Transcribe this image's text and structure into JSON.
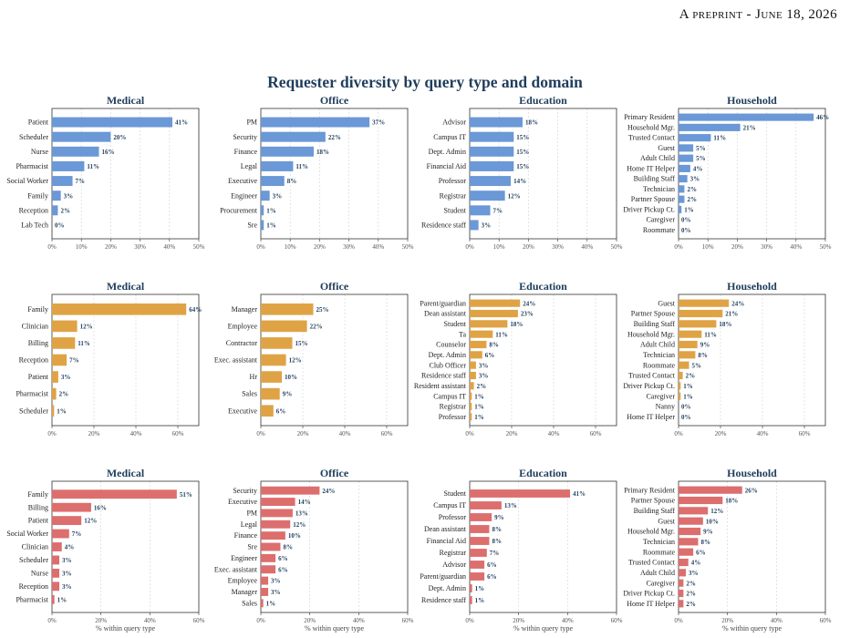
{
  "header": "A preprint - June 18, 2026",
  "main_title": "Requester diversity by query type and domain",
  "colors": {
    "row1": "#6b98d6",
    "row2": "#dfa345",
    "row3": "#dd6e6e",
    "value_label": "#1f3d5c",
    "title": "#1f3d5c"
  },
  "chart_data": [
    {
      "type": "bar",
      "orientation": "horizontal",
      "title": "Medical",
      "categories": [
        "Patient",
        "Scheduler",
        "Nurse",
        "Pharmacist",
        "Social Worker",
        "Family",
        "Reception",
        "Lab Tech"
      ],
      "values": [
        41,
        20,
        16,
        11,
        7,
        3,
        2,
        0
      ],
      "value_labels": [
        "41%",
        "20%",
        "16%",
        "11%",
        "7%",
        "3%",
        "2%",
        "0%"
      ],
      "xlim": [
        0,
        50
      ],
      "xticks": [
        "0%",
        "10%",
        "20%",
        "30%",
        "40%",
        "50%"
      ],
      "xlabel": "",
      "grid": true
    },
    {
      "type": "bar",
      "orientation": "horizontal",
      "title": "Office",
      "categories": [
        "PM",
        "Security",
        "Finance",
        "Legal",
        "Executive",
        "Engineer",
        "Procurement",
        "Sre"
      ],
      "values": [
        37,
        22,
        18,
        11,
        8,
        3,
        1,
        1
      ],
      "value_labels": [
        "37%",
        "22%",
        "18%",
        "11%",
        "8%",
        "3%",
        "1%",
        "1%"
      ],
      "xlim": [
        0,
        50
      ],
      "xticks": [
        "0%",
        "10%",
        "20%",
        "30%",
        "40%",
        "50%"
      ],
      "xlabel": "",
      "grid": true
    },
    {
      "type": "bar",
      "orientation": "horizontal",
      "title": "Education",
      "categories": [
        "Advisor",
        "Campus IT",
        "Dept. Admin",
        "Financial Aid",
        "Professor",
        "Registrar",
        "Student",
        "Residence staff"
      ],
      "values": [
        18,
        15,
        15,
        15,
        14,
        12,
        7,
        3
      ],
      "value_labels": [
        "18%",
        "15%",
        "15%",
        "15%",
        "14%",
        "12%",
        "7%",
        "3%"
      ],
      "xlim": [
        0,
        50
      ],
      "xticks": [
        "0%",
        "10%",
        "20%",
        "30%",
        "40%",
        "50%"
      ],
      "xlabel": "",
      "grid": true
    },
    {
      "type": "bar",
      "orientation": "horizontal",
      "title": "Household",
      "categories": [
        "Primary Resident",
        "Household Mgr.",
        "Trusted Contact",
        "Guest",
        "Adult Child",
        "Home IT Helper",
        "Building Staff",
        "Technician",
        "Partner Spouse",
        "Driver Pickup Ct.",
        "Caregiver",
        "Roommate"
      ],
      "values": [
        46,
        21,
        11,
        5,
        5,
        4,
        3,
        2,
        2,
        1,
        0,
        0
      ],
      "value_labels": [
        "46%",
        "21%",
        "11%",
        "5%",
        "5%",
        "4%",
        "3%",
        "2%",
        "2%",
        "1%",
        "0%",
        "0%"
      ],
      "xlim": [
        0,
        50
      ],
      "xticks": [
        "0%",
        "10%",
        "20%",
        "30%",
        "40%",
        "50%"
      ],
      "xlabel": "",
      "grid": true
    },
    {
      "type": "bar",
      "orientation": "horizontal",
      "title": "Medical",
      "categories": [
        "Family",
        "Clinician",
        "Billing",
        "Reception",
        "Patient",
        "Pharmacist",
        "Scheduler"
      ],
      "values": [
        64,
        12,
        11,
        7,
        3,
        2,
        1
      ],
      "value_labels": [
        "64%",
        "12%",
        "11%",
        "7%",
        "3%",
        "2%",
        "1%"
      ],
      "xlim": [
        0,
        70
      ],
      "xticks": [
        "0%",
        "20%",
        "40%",
        "60%"
      ],
      "xlabel": "",
      "grid": true
    },
    {
      "type": "bar",
      "orientation": "horizontal",
      "title": "Office",
      "categories": [
        "Manager",
        "Employee",
        "Contractor",
        "Exec. assistant",
        "Hr",
        "Sales",
        "Executive"
      ],
      "values": [
        25,
        22,
        15,
        12,
        10,
        9,
        6
      ],
      "value_labels": [
        "25%",
        "22%",
        "15%",
        "12%",
        "10%",
        "9%",
        "6%"
      ],
      "xlim": [
        0,
        70
      ],
      "xticks": [
        "0%",
        "20%",
        "40%",
        "60%"
      ],
      "xlabel": "",
      "grid": true
    },
    {
      "type": "bar",
      "orientation": "horizontal",
      "title": "Education",
      "categories": [
        "Parent/guardian",
        "Dean assistant",
        "Student",
        "Ta",
        "Counselor",
        "Dept. Admin",
        "Club Officer",
        "Residence staff",
        "Resident assistant",
        "Campus IT",
        "Registrar",
        "Professor"
      ],
      "values": [
        24,
        23,
        18,
        11,
        8,
        6,
        3,
        3,
        2,
        1,
        1,
        1
      ],
      "value_labels": [
        "24%",
        "23%",
        "18%",
        "11%",
        "8%",
        "6%",
        "3%",
        "3%",
        "2%",
        "1%",
        "1%",
        "1%"
      ],
      "xlim": [
        0,
        70
      ],
      "xticks": [
        "0%",
        "20%",
        "40%",
        "60%"
      ],
      "xlabel": "",
      "grid": true
    },
    {
      "type": "bar",
      "orientation": "horizontal",
      "title": "Household",
      "categories": [
        "Guest",
        "Partner Spouse",
        "Building Staff",
        "Household Mgr.",
        "Adult Child",
        "Technician",
        "Roommate",
        "Trusted Contact",
        "Driver Pickup Ct.",
        "Caregiver",
        "Nanny",
        "Home IT Helper"
      ],
      "values": [
        24,
        21,
        18,
        11,
        9,
        8,
        5,
        2,
        1,
        1,
        0,
        0
      ],
      "value_labels": [
        "24%",
        "21%",
        "18%",
        "11%",
        "9%",
        "8%",
        "5%",
        "2%",
        "1%",
        "1%",
        "0%",
        "0%"
      ],
      "xlim": [
        0,
        70
      ],
      "xticks": [
        "0%",
        "20%",
        "40%",
        "60%"
      ],
      "xlabel": "",
      "grid": true
    },
    {
      "type": "bar",
      "orientation": "horizontal",
      "title": "Medical",
      "categories": [
        "Family",
        "Billing",
        "Patient",
        "Social Worker",
        "Clinician",
        "Scheduler",
        "Nurse",
        "Reception",
        "Pharmacist"
      ],
      "values": [
        51,
        16,
        12,
        7,
        4,
        3,
        3,
        3,
        1
      ],
      "value_labels": [
        "51%",
        "16%",
        "12%",
        "7%",
        "4%",
        "3%",
        "3%",
        "3%",
        "1%"
      ],
      "xlim": [
        0,
        60
      ],
      "xticks": [
        "0%",
        "20%",
        "40%",
        "60%"
      ],
      "xlabel": "% within query type",
      "grid": true
    },
    {
      "type": "bar",
      "orientation": "horizontal",
      "title": "Office",
      "categories": [
        "Security",
        "Executive",
        "PM",
        "Legal",
        "Finance",
        "Sre",
        "Engineer",
        "Exec. assistant",
        "Employee",
        "Manager",
        "Sales"
      ],
      "values": [
        24,
        14,
        13,
        12,
        10,
        8,
        6,
        6,
        3,
        3,
        1
      ],
      "value_labels": [
        "24%",
        "14%",
        "13%",
        "12%",
        "10%",
        "8%",
        "6%",
        "6%",
        "3%",
        "3%",
        "1%"
      ],
      "xlim": [
        0,
        60
      ],
      "xticks": [
        "0%",
        "20%",
        "40%",
        "60%"
      ],
      "xlabel": "% within query type",
      "grid": true
    },
    {
      "type": "bar",
      "orientation": "horizontal",
      "title": "Education",
      "categories": [
        "Student",
        "Campus IT",
        "Professor",
        "Dean assistant",
        "Financial Aid",
        "Registrar",
        "Advisor",
        "Parent/guardian",
        "Dept. Admin",
        "Residence staff"
      ],
      "values": [
        41,
        13,
        9,
        8,
        8,
        7,
        6,
        6,
        1,
        1
      ],
      "value_labels": [
        "41%",
        "13%",
        "9%",
        "8%",
        "8%",
        "7%",
        "6%",
        "6%",
        "1%",
        "1%"
      ],
      "xlim": [
        0,
        60
      ],
      "xticks": [
        "0%",
        "20%",
        "40%",
        "60%"
      ],
      "xlabel": "% within query type",
      "grid": true
    },
    {
      "type": "bar",
      "orientation": "horizontal",
      "title": "Household",
      "categories": [
        "Primary Resident",
        "Partner Spouse",
        "Building Staff",
        "Guest",
        "Household Mgr.",
        "Technician",
        "Roommate",
        "Trusted Contact",
        "Adult Child",
        "Caregiver",
        "Driver Pickup Ct.",
        "Home IT Helper"
      ],
      "values": [
        26,
        18,
        12,
        10,
        9,
        8,
        6,
        4,
        3,
        2,
        2,
        2
      ],
      "value_labels": [
        "26%",
        "18%",
        "12%",
        "10%",
        "9%",
        "8%",
        "6%",
        "4%",
        "3%",
        "2%",
        "2%",
        "2%"
      ],
      "xlim": [
        0,
        60
      ],
      "xticks": [
        "0%",
        "20%",
        "40%",
        "60%"
      ],
      "xlabel": "% within query type",
      "grid": true
    }
  ]
}
